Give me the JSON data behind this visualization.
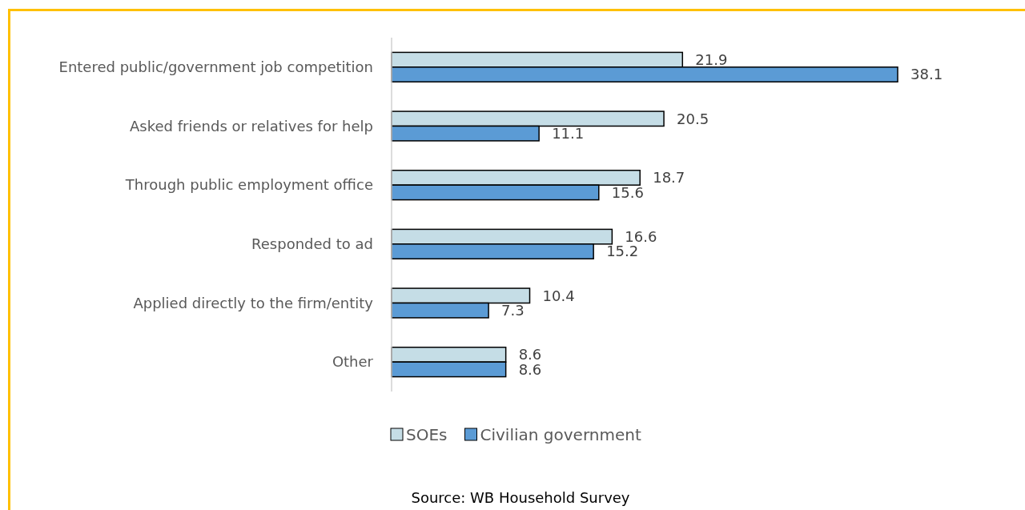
{
  "chart_data": {
    "type": "bar",
    "orientation": "horizontal",
    "categories": [
      "Entered public/government job competition",
      "Asked friends or relatives for help",
      "Through public employment office",
      "Responded to ad",
      "Applied directly to the firm/entity",
      "Other"
    ],
    "series": [
      {
        "name": "SOEs",
        "color": "#c5dde6",
        "values": [
          21.9,
          20.5,
          18.7,
          16.6,
          10.4,
          8.6
        ]
      },
      {
        "name": "Civilian government",
        "color": "#5b9bd5",
        "values": [
          38.1,
          11.1,
          15.6,
          15.2,
          7.3,
          8.6
        ]
      }
    ],
    "data_labels": true,
    "legend": "bottom",
    "annotations": [
      "Source: WB Household Survey"
    ]
  }
}
